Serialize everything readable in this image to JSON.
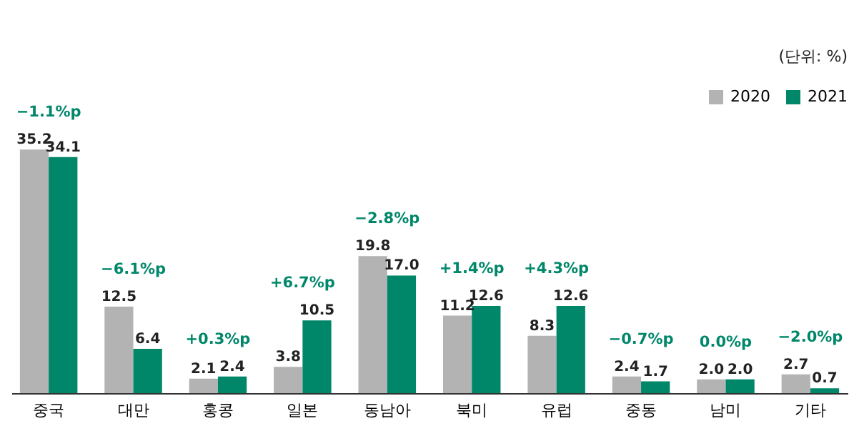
{
  "chart_data": {
    "type": "bar",
    "categories": [
      "중국",
      "대만",
      "홍콩",
      "일본",
      "동남아",
      "북미",
      "유럽",
      "중동",
      "남미",
      "기타"
    ],
    "series": [
      {
        "name": "2020",
        "color": "#b3b3b3",
        "values": [
          35.2,
          12.5,
          2.1,
          3.8,
          19.8,
          11.2,
          8.3,
          2.4,
          2.0,
          2.7
        ],
        "value_labels": [
          "35.2",
          "12.5",
          "2.1",
          "3.8",
          "19.8",
          "11.2",
          "8.3",
          "2.4",
          "2.0",
          "2.7"
        ]
      },
      {
        "name": "2021",
        "color": "#00876a",
        "values": [
          34.1,
          6.4,
          2.4,
          10.5,
          17.0,
          12.6,
          12.6,
          1.7,
          2.0,
          0.7
        ],
        "value_labels": [
          "34.1",
          "6.4",
          "2.4",
          "10.5",
          "17.0",
          "12.6",
          "12.6",
          "1.7",
          "2.0",
          "0.7"
        ]
      }
    ],
    "ylim": [
      0,
      44
    ],
    "tick_labels": "x",
    "legend": "top right",
    "grid": false,
    "annotations": [
      "(단위: %)",
      "−1.1%p",
      "−6.1%p",
      "+0.3%p",
      "+6.7%p",
      "−2.8%p",
      "+1.4%p",
      "+4.3%p",
      "−0.7%p",
      "0.0%p",
      "−2.0%p"
    ]
  }
}
